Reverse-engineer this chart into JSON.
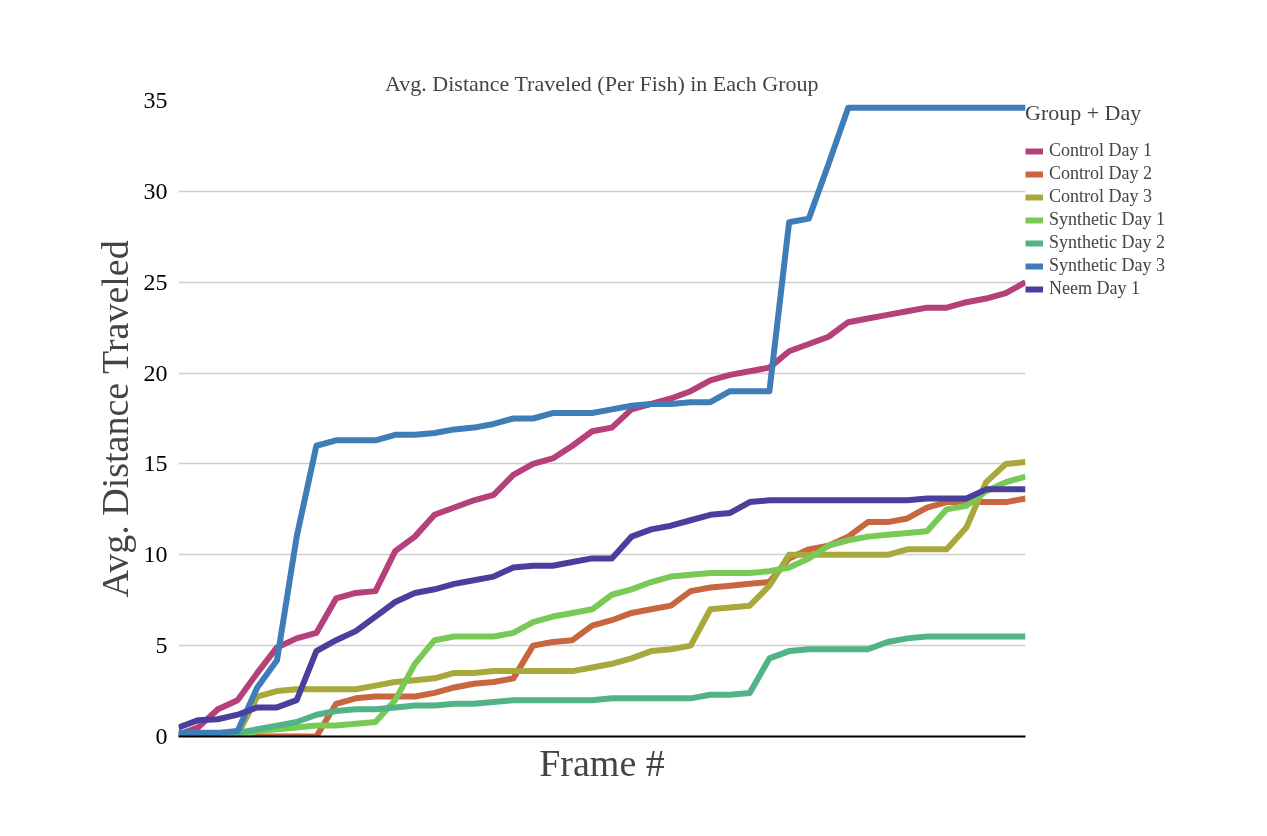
{
  "chart_data": {
    "type": "line",
    "title": "Avg. Distance Traveled (Per Fish) in Each Group",
    "xlabel": "Frame #",
    "ylabel": "Avg. Distance Traveled",
    "legend_title": "Group + Day",
    "categories": [
      null,
      null,
      null,
      null,
      null,
      null,
      null,
      null,
      null,
      null,
      null,
      null,
      null,
      null,
      null,
      null,
      null,
      null,
      null,
      null,
      null,
      null,
      null,
      null,
      null,
      null,
      null,
      null,
      null,
      null,
      null,
      null,
      null,
      null,
      null,
      null,
      null,
      null,
      null,
      null,
      null,
      null,
      null,
      null
    ],
    "ylim": [
      0,
      35
    ],
    "yticks": [
      0,
      5,
      10,
      15,
      20,
      25,
      30,
      35
    ],
    "grid": "y",
    "legend": "right",
    "tick_labels": "y",
    "line_style": "solid",
    "series": [
      {
        "name": "Control Day 1",
        "color": "#b5407a",
        "values": [
          0.1,
          0.5,
          1.5,
          2.0,
          3.5,
          4.9,
          5.4,
          5.7,
          7.6,
          7.9,
          8.0,
          10.2,
          11.0,
          12.2,
          12.6,
          13.0,
          13.3,
          14.4,
          15.0,
          15.3,
          16.0,
          16.8,
          17.0,
          18.0,
          18.3,
          18.6,
          19.0,
          19.6,
          19.9,
          20.1,
          20.3,
          21.2,
          21.6,
          22.0,
          22.8,
          23.0,
          23.2,
          23.4,
          23.6,
          23.6,
          23.9,
          24.1,
          24.4,
          25.0
        ]
      },
      {
        "name": "Control Day 2",
        "color": "#c8673f",
        "values": [
          null,
          null,
          0,
          0,
          0,
          0,
          0,
          0,
          1.8,
          2.1,
          2.2,
          2.2,
          2.2,
          2.4,
          2.7,
          2.9,
          3.0,
          3.2,
          5.0,
          5.2,
          5.3,
          6.1,
          6.4,
          6.8,
          7.0,
          7.2,
          8.0,
          8.2,
          8.3,
          8.4,
          8.5,
          9.8,
          10.3,
          10.5,
          11.0,
          11.8,
          11.8,
          12.0,
          12.6,
          12.9,
          12.9,
          12.9,
          12.9,
          13.1
        ]
      },
      {
        "name": "Control Day 3",
        "color": "#a9a83d",
        "values": [
          null,
          null,
          0,
          0.1,
          2.2,
          2.5,
          2.6,
          2.6,
          2.6,
          2.6,
          2.8,
          3.0,
          3.1,
          3.2,
          3.5,
          3.5,
          3.6,
          3.6,
          3.6,
          3.6,
          3.6,
          3.8,
          4.0,
          4.3,
          4.7,
          4.8,
          5.0,
          7.0,
          7.1,
          7.2,
          8.3,
          10.0,
          10.0,
          10.0,
          10.0,
          10.0,
          10.0,
          10.3,
          10.3,
          10.3,
          11.5,
          14.0,
          15.0,
          15.1
        ]
      },
      {
        "name": "Synthetic Day 1",
        "color": "#79c957",
        "values": [
          null,
          null,
          0,
          0,
          0.3,
          0.4,
          0.5,
          0.6,
          0.6,
          0.7,
          0.8,
          2.0,
          4.0,
          5.3,
          5.5,
          5.5,
          5.5,
          5.7,
          6.3,
          6.6,
          6.8,
          7.0,
          7.8,
          8.1,
          8.5,
          8.8,
          8.9,
          9.0,
          9.0,
          9.0,
          9.1,
          9.3,
          9.8,
          10.5,
          10.8,
          11.0,
          11.1,
          11.2,
          11.3,
          12.5,
          12.7,
          13.5,
          14.0,
          14.3
        ]
      },
      {
        "name": "Synthetic Day 2",
        "color": "#52b386",
        "values": [
          0,
          0.05,
          0.1,
          0.2,
          0.4,
          0.6,
          0.8,
          1.2,
          1.4,
          1.5,
          1.5,
          1.6,
          1.7,
          1.7,
          1.8,
          1.8,
          1.9,
          2.0,
          2.0,
          2.0,
          2.0,
          2.0,
          2.1,
          2.1,
          2.1,
          2.1,
          2.1,
          2.3,
          2.3,
          2.4,
          4.3,
          4.7,
          4.8,
          4.8,
          4.8,
          4.8,
          5.2,
          5.4,
          5.5,
          5.5,
          5.5,
          5.5,
          5.5,
          5.5
        ]
      },
      {
        "name": "Synthetic Day 3",
        "color": "#3f7db8",
        "values": [
          0.2,
          0.2,
          0.2,
          0.3,
          2.7,
          4.2,
          11.0,
          16.0,
          16.3,
          16.3,
          16.3,
          16.6,
          16.6,
          16.7,
          16.9,
          17.0,
          17.2,
          17.5,
          17.5,
          17.8,
          17.8,
          17.8,
          18.0,
          18.2,
          18.3,
          18.3,
          18.4,
          18.4,
          19.0,
          19.0,
          19.0,
          28.3,
          28.5,
          31.5,
          34.6,
          34.6,
          34.6,
          34.6,
          34.6,
          34.6,
          34.6,
          34.6,
          34.6,
          34.6
        ]
      },
      {
        "name": "Neem Day 1",
        "color": "#4a3f9c",
        "values": [
          0.5,
          0.9,
          0.95,
          1.2,
          1.6,
          1.6,
          2.0,
          4.7,
          5.3,
          5.8,
          6.6,
          7.4,
          7.9,
          8.1,
          8.4,
          8.6,
          8.8,
          9.3,
          9.4,
          9.4,
          9.6,
          9.8,
          9.8,
          11.0,
          11.4,
          11.6,
          11.9,
          12.2,
          12.3,
          12.9,
          13.0,
          13.0,
          13.0,
          13.0,
          13.0,
          13.0,
          13.0,
          13.0,
          13.1,
          13.1,
          13.1,
          13.6,
          13.6,
          13.6
        ]
      }
    ]
  }
}
